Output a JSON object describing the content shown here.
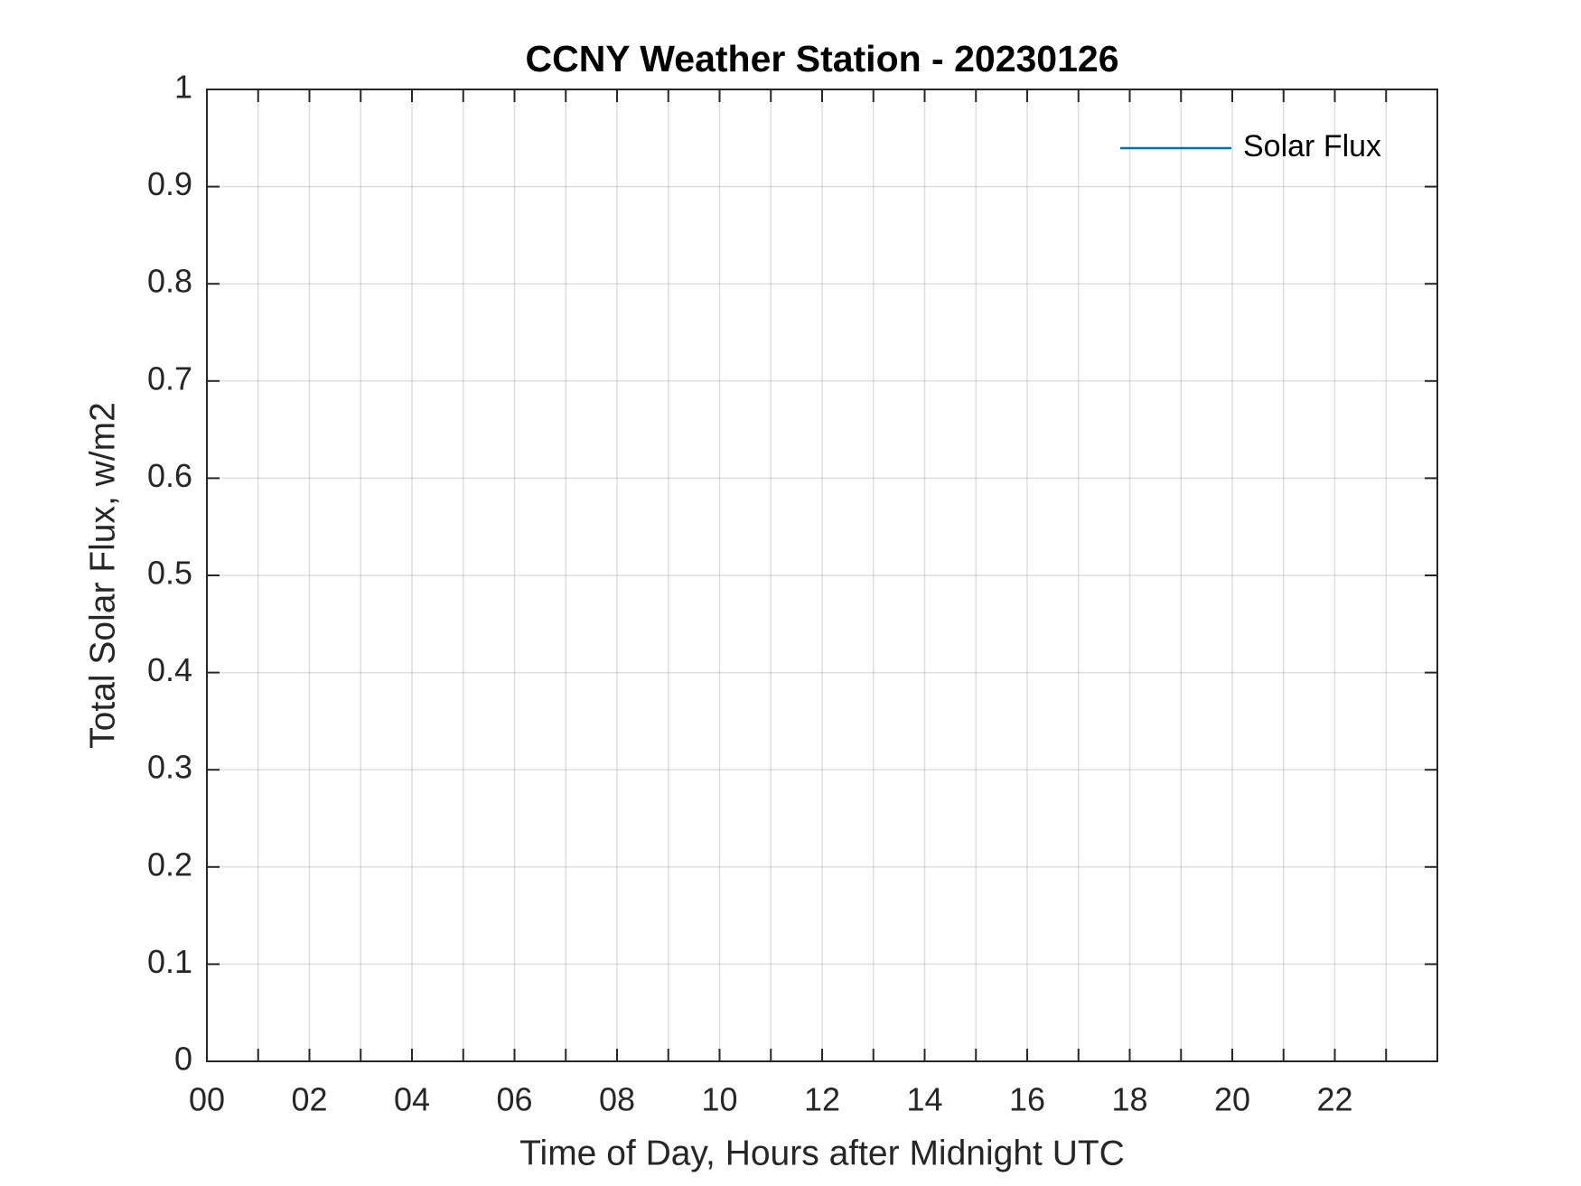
{
  "chart_data": {
    "type": "line",
    "title": "CCNY Weather Station - 20230126",
    "x_label": "Time of Day, Hours after Midnight UTC",
    "y_label": "Total Solar Flux, w/m2",
    "x": [],
    "series": [
      {
        "name": "Solar Flux",
        "color": "#0072bd",
        "values": []
      }
    ],
    "xlim": [
      0,
      24
    ],
    "xticks": [
      {
        "value": 0,
        "label": "00"
      },
      {
        "value": 1,
        "label": null
      },
      {
        "value": 2,
        "label": "02"
      },
      {
        "value": 3,
        "label": null
      },
      {
        "value": 4,
        "label": "04"
      },
      {
        "value": 5,
        "label": null
      },
      {
        "value": 6,
        "label": "06"
      },
      {
        "value": 7,
        "label": null
      },
      {
        "value": 8,
        "label": "08"
      },
      {
        "value": 9,
        "label": null
      },
      {
        "value": 10,
        "label": "10"
      },
      {
        "value": 11,
        "label": null
      },
      {
        "value": 12,
        "label": "12"
      },
      {
        "value": 13,
        "label": null
      },
      {
        "value": 14,
        "label": "14"
      },
      {
        "value": 15,
        "label": null
      },
      {
        "value": 16,
        "label": "16"
      },
      {
        "value": 17,
        "label": null
      },
      {
        "value": 18,
        "label": "18"
      },
      {
        "value": 19,
        "label": null
      },
      {
        "value": 20,
        "label": "20"
      },
      {
        "value": 21,
        "label": null
      },
      {
        "value": 22,
        "label": "22"
      },
      {
        "value": 23,
        "label": null
      }
    ],
    "ylim": [
      0,
      1
    ],
    "yticks": [
      0,
      0.1,
      0.2,
      0.3,
      0.4,
      0.5,
      0.6,
      0.7,
      0.8,
      0.9,
      1
    ],
    "grid": true,
    "legend": "top-right"
  }
}
